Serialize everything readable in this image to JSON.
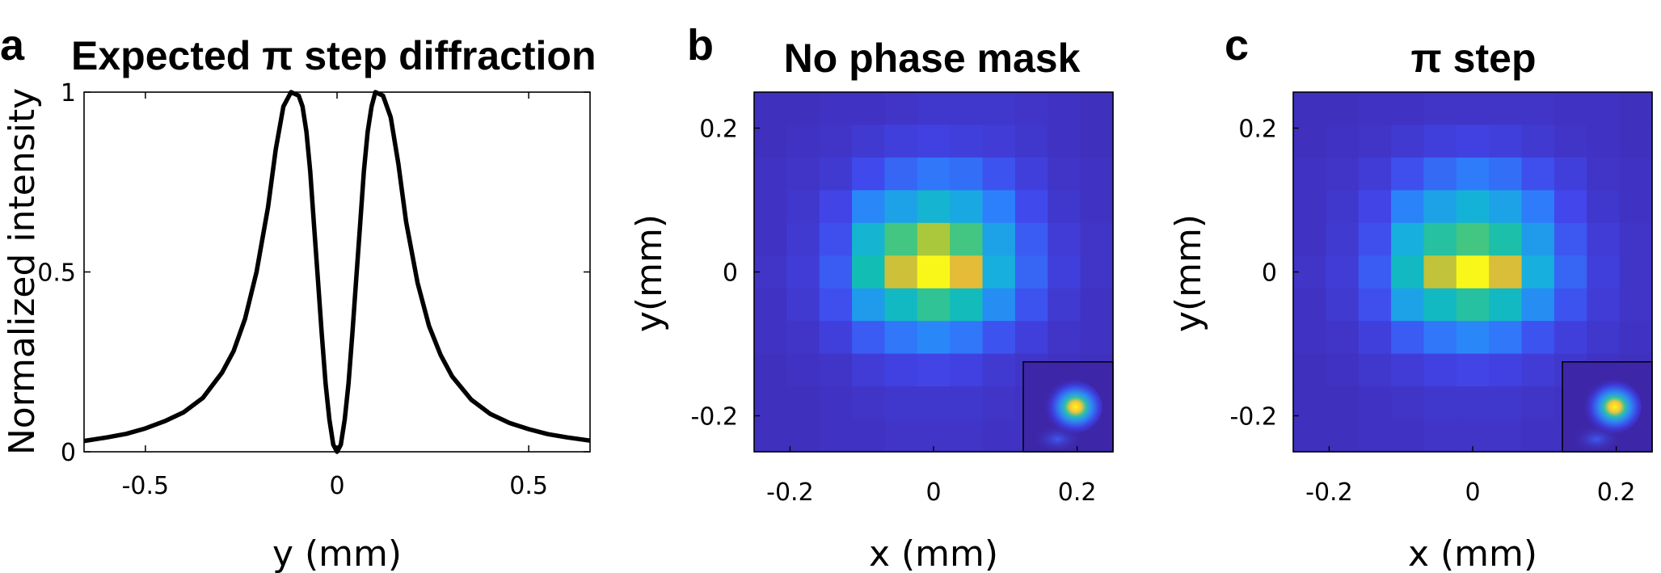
{
  "chart_data": [
    {
      "type": "line",
      "panel_label": "a",
      "title": "Expected π step diffraction",
      "xlabel": "y (mm)",
      "ylabel": "Normalized intensity",
      "xlim": [
        -0.66,
        0.66
      ],
      "ylim": [
        0,
        1
      ],
      "xticks": [
        -0.5,
        0,
        0.5
      ],
      "xtick_labels": [
        "-0.5",
        "0",
        "0.5"
      ],
      "yticks": [
        0,
        0.5,
        1
      ],
      "ytick_labels": [
        "0",
        "0.5",
        "1"
      ],
      "grid": false,
      "series": [
        {
          "color": "#000000",
          "x": [
            -0.66,
            -0.6,
            -0.55,
            -0.5,
            -0.45,
            -0.4,
            -0.35,
            -0.3,
            -0.27,
            -0.24,
            -0.21,
            -0.18,
            -0.16,
            -0.14,
            -0.12,
            -0.1,
            -0.09,
            -0.08,
            -0.07,
            -0.06,
            -0.05,
            -0.04,
            -0.03,
            -0.02,
            -0.01,
            0,
            0.01,
            0.02,
            0.03,
            0.04,
            0.05,
            0.06,
            0.07,
            0.08,
            0.09,
            0.1,
            0.12,
            0.14,
            0.16,
            0.18,
            0.21,
            0.24,
            0.27,
            0.3,
            0.35,
            0.4,
            0.45,
            0.5,
            0.55,
            0.6,
            0.66
          ],
          "y": [
            0.03,
            0.04,
            0.05,
            0.065,
            0.085,
            0.11,
            0.15,
            0.22,
            0.28,
            0.37,
            0.5,
            0.68,
            0.84,
            0.96,
            1.0,
            0.99,
            0.96,
            0.89,
            0.78,
            0.63,
            0.48,
            0.33,
            0.19,
            0.09,
            0.02,
            0.0,
            0.02,
            0.09,
            0.19,
            0.33,
            0.48,
            0.63,
            0.78,
            0.89,
            0.96,
            1.0,
            0.99,
            0.93,
            0.8,
            0.64,
            0.47,
            0.35,
            0.27,
            0.21,
            0.145,
            0.105,
            0.08,
            0.063,
            0.049,
            0.04,
            0.031
          ]
        }
      ]
    },
    {
      "type": "heatmap",
      "panel_label": "b",
      "title": "No phase mask",
      "xlabel": "x (mm)",
      "ylabel": "y(mm)",
      "xlim": [
        -0.25,
        0.25
      ],
      "ylim": [
        -0.25,
        0.25
      ],
      "xticks": [
        -0.2,
        0,
        0.2
      ],
      "xtick_labels": [
        "-0.2",
        "0",
        "0.2"
      ],
      "yticks": [
        0.2,
        0,
        -0.2
      ],
      "ytick_labels": [
        "0.2",
        "0",
        "-0.2"
      ],
      "colormap": "parula",
      "grid_rows_top_to_bottom": [
        [
          0.04,
          0.04,
          0.05,
          0.05,
          0.06,
          0.07,
          0.07,
          0.07,
          0.06,
          0.05,
          0.04
        ],
        [
          0.04,
          0.05,
          0.06,
          0.08,
          0.1,
          0.11,
          0.1,
          0.09,
          0.07,
          0.05,
          0.04
        ],
        [
          0.05,
          0.06,
          0.08,
          0.14,
          0.2,
          0.24,
          0.22,
          0.16,
          0.1,
          0.06,
          0.05
        ],
        [
          0.05,
          0.07,
          0.12,
          0.28,
          0.36,
          0.44,
          0.38,
          0.26,
          0.14,
          0.07,
          0.05
        ],
        [
          0.05,
          0.08,
          0.15,
          0.44,
          0.62,
          0.76,
          0.62,
          0.36,
          0.18,
          0.09,
          0.06
        ],
        [
          0.06,
          0.09,
          0.18,
          0.52,
          0.82,
          1.0,
          0.86,
          0.4,
          0.2,
          0.1,
          0.06
        ],
        [
          0.05,
          0.08,
          0.15,
          0.34,
          0.48,
          0.58,
          0.5,
          0.3,
          0.16,
          0.08,
          0.05
        ],
        [
          0.05,
          0.06,
          0.1,
          0.18,
          0.24,
          0.28,
          0.24,
          0.16,
          0.1,
          0.06,
          0.05
        ],
        [
          0.04,
          0.05,
          0.06,
          0.09,
          0.11,
          0.12,
          0.11,
          0.08,
          0.06,
          0.05,
          0.04
        ],
        [
          0.04,
          0.04,
          0.05,
          0.06,
          0.07,
          0.07,
          0.07,
          0.06,
          0.05,
          0.04,
          0.04
        ],
        [
          0.04,
          0.04,
          0.05,
          0.05,
          0.06,
          0.06,
          0.06,
          0.05,
          0.05,
          0.04,
          0.04
        ]
      ],
      "inset": "simulated-spot"
    },
    {
      "type": "heatmap",
      "panel_label": "c",
      "title": "π step",
      "xlabel": "x (mm)",
      "ylabel": "y(mm)",
      "xlim": [
        -0.25,
        0.25
      ],
      "ylim": [
        -0.25,
        0.25
      ],
      "xticks": [
        -0.2,
        0,
        0.2
      ],
      "xtick_labels": [
        "-0.2",
        "0",
        "0.2"
      ],
      "yticks": [
        0.2,
        0,
        -0.2
      ],
      "ytick_labels": [
        "0.2",
        "0",
        "-0.2"
      ],
      "colormap": "parula",
      "grid_rows_top_to_bottom": [
        [
          0.04,
          0.04,
          0.05,
          0.05,
          0.06,
          0.06,
          0.06,
          0.06,
          0.05,
          0.05,
          0.04
        ],
        [
          0.04,
          0.05,
          0.06,
          0.08,
          0.1,
          0.11,
          0.1,
          0.08,
          0.06,
          0.05,
          0.04
        ],
        [
          0.05,
          0.06,
          0.09,
          0.15,
          0.21,
          0.25,
          0.22,
          0.15,
          0.1,
          0.06,
          0.05
        ],
        [
          0.05,
          0.07,
          0.12,
          0.27,
          0.36,
          0.42,
          0.36,
          0.25,
          0.13,
          0.07,
          0.05
        ],
        [
          0.05,
          0.08,
          0.15,
          0.4,
          0.56,
          0.62,
          0.54,
          0.34,
          0.17,
          0.09,
          0.06
        ],
        [
          0.06,
          0.09,
          0.18,
          0.48,
          0.8,
          1.0,
          0.84,
          0.4,
          0.2,
          0.1,
          0.06
        ],
        [
          0.05,
          0.08,
          0.15,
          0.36,
          0.48,
          0.56,
          0.48,
          0.3,
          0.16,
          0.09,
          0.06
        ],
        [
          0.05,
          0.06,
          0.1,
          0.18,
          0.24,
          0.28,
          0.24,
          0.16,
          0.1,
          0.07,
          0.05
        ],
        [
          0.04,
          0.05,
          0.07,
          0.09,
          0.11,
          0.12,
          0.11,
          0.09,
          0.07,
          0.05,
          0.04
        ],
        [
          0.04,
          0.04,
          0.05,
          0.06,
          0.07,
          0.07,
          0.07,
          0.06,
          0.05,
          0.04,
          0.04
        ],
        [
          0.04,
          0.04,
          0.05,
          0.05,
          0.06,
          0.06,
          0.06,
          0.05,
          0.05,
          0.04,
          0.04
        ]
      ],
      "inset": "simulated-spot"
    }
  ]
}
